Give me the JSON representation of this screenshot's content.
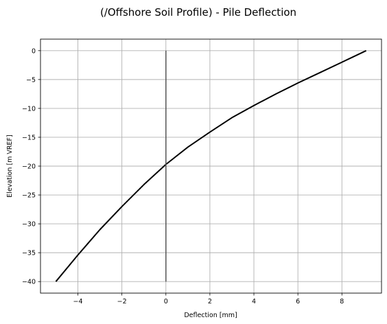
{
  "chart_data": {
    "type": "line",
    "title": "(/Offshore Soil Profile) - Pile Deflection",
    "xlabel": "Deflection [mm]",
    "ylabel": "Elevation [m VREF]",
    "xlim": [
      -5.7,
      9.8
    ],
    "ylim": [
      -42,
      2
    ],
    "grid": true,
    "x_ticks": [
      -4,
      -2,
      0,
      2,
      4,
      6,
      8
    ],
    "y_ticks": [
      0,
      -5,
      -10,
      -15,
      -20,
      -25,
      -30,
      -35,
      -40
    ],
    "series": [
      {
        "color": "#000000",
        "x": [
          9.1,
          8.0,
          7.0,
          6.0,
          5.0,
          4.0,
          3.0,
          2.0,
          1.0,
          0.0,
          -1.0,
          -2.0,
          -3.0,
          -4.0,
          -5.0
        ],
        "y": [
          0.0,
          -2.0,
          -3.8,
          -5.6,
          -7.5,
          -9.5,
          -11.6,
          -14.1,
          -16.7,
          -19.7,
          -23.2,
          -27.0,
          -31.0,
          -35.4,
          -40.0
        ]
      },
      {
        "color": "#555555",
        "x": [
          0,
          0
        ],
        "y": [
          0,
          -40
        ]
      }
    ]
  }
}
